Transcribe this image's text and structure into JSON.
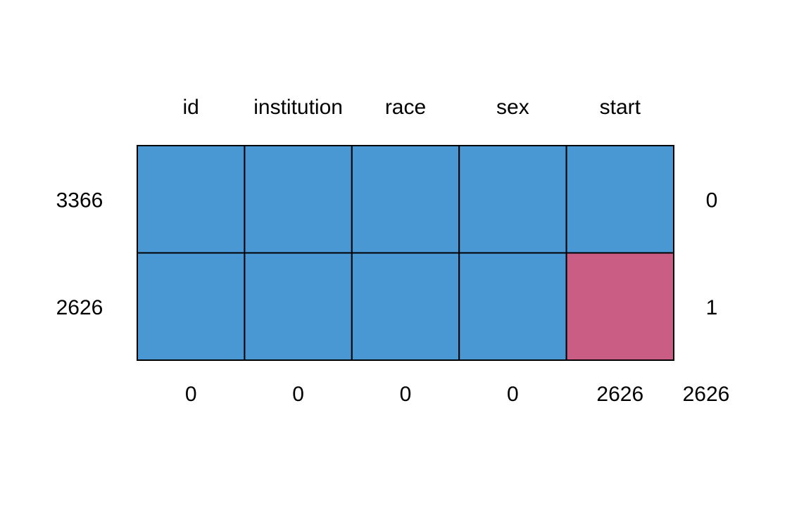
{
  "chart_data": {
    "type": "heatmap",
    "variables": [
      "id",
      "institution",
      "race",
      "sex",
      "start"
    ],
    "rows": [
      {
        "count": "3366",
        "missing_vars": "0",
        "pattern": [
          1,
          1,
          1,
          1,
          1
        ]
      },
      {
        "count": "2626",
        "missing_vars": "1",
        "pattern": [
          1,
          1,
          1,
          1,
          0
        ]
      }
    ],
    "column_missing": [
      "0",
      "0",
      "0",
      "0",
      "2626"
    ],
    "total_missing": "2626",
    "colors": {
      "observed": "#4A98D3",
      "missing": "#CA5D84",
      "border": "#000000"
    },
    "legend": "none",
    "grid": true
  }
}
